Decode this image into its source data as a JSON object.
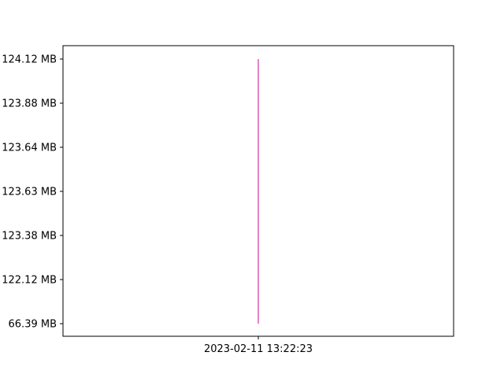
{
  "chart_data": {
    "type": "line",
    "title": "",
    "xlabel": "",
    "ylabel": "",
    "x_tick_labels": [
      "2023-02-11 13:22:23"
    ],
    "y_tick_labels": [
      "66.39 MB",
      "122.12 MB",
      "123.38 MB",
      "123.63 MB",
      "123.64 MB",
      "123.88 MB",
      "124.12 MB"
    ],
    "y_axis": "categorical",
    "grid": false,
    "legend": "none",
    "series": [
      {
        "color": "#e377c2",
        "x": [
          "2023-02-11 13:22:23",
          "2023-02-11 13:22:23",
          "2023-02-11 13:22:23",
          "2023-02-11 13:22:23",
          "2023-02-11 13:22:23",
          "2023-02-11 13:22:23",
          "2023-02-11 13:22:23"
        ],
        "y": [
          "66.39 MB",
          "122.12 MB",
          "123.38 MB",
          "123.63 MB",
          "123.64 MB",
          "123.88 MB",
          "124.12 MB"
        ]
      }
    ]
  }
}
